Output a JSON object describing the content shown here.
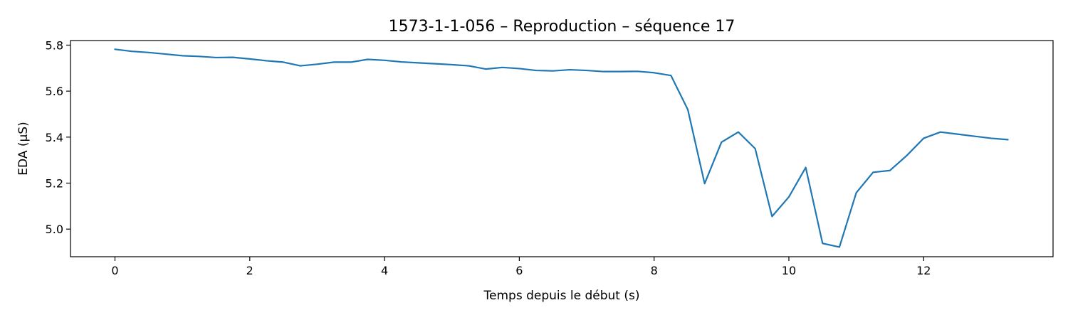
{
  "chart_data": {
    "type": "line",
    "title": "1573-1-1-056 – Reproduction – séquence 17",
    "xlabel": "Temps depuis le début (s)",
    "ylabel": "EDA (µS)",
    "xlim": [
      -0.66,
      13.92
    ],
    "ylim": [
      4.88,
      5.82
    ],
    "xticks": [
      0,
      2,
      4,
      6,
      8,
      10,
      12
    ],
    "yticks": [
      5.0,
      5.2,
      5.4,
      5.6,
      5.8
    ],
    "grid": false,
    "legend": "none",
    "series": [
      {
        "color": "#1f77b4",
        "x": [
          0,
          0.25,
          0.5,
          0.75,
          1.0,
          1.25,
          1.5,
          1.75,
          2.0,
          2.25,
          2.5,
          2.75,
          3.0,
          3.25,
          3.5,
          3.75,
          4.0,
          4.25,
          4.5,
          4.75,
          5.0,
          5.25,
          5.5,
          5.75,
          6.0,
          6.25,
          6.5,
          6.75,
          7.0,
          7.25,
          7.5,
          7.75,
          8.0,
          8.25,
          8.5,
          8.75,
          9.0,
          9.25,
          9.5,
          9.75,
          10.0,
          10.25,
          10.5,
          10.75,
          11.0,
          11.25,
          11.5,
          11.75,
          12.0,
          12.25,
          12.5,
          12.75,
          13.0,
          13.25
        ],
        "y": [
          5.782,
          5.773,
          5.768,
          5.761,
          5.754,
          5.751,
          5.746,
          5.747,
          5.74,
          5.732,
          5.726,
          5.71,
          5.717,
          5.726,
          5.726,
          5.738,
          5.734,
          5.727,
          5.723,
          5.719,
          5.715,
          5.71,
          5.696,
          5.703,
          5.698,
          5.69,
          5.688,
          5.693,
          5.69,
          5.685,
          5.685,
          5.686,
          5.68,
          5.668,
          5.52,
          5.198,
          5.378,
          5.422,
          5.35,
          5.055,
          5.14,
          5.268,
          4.938,
          4.922,
          5.158,
          5.247,
          5.255,
          5.32,
          5.395,
          5.422,
          5.413,
          5.404,
          5.395,
          5.389
        ]
      }
    ]
  }
}
